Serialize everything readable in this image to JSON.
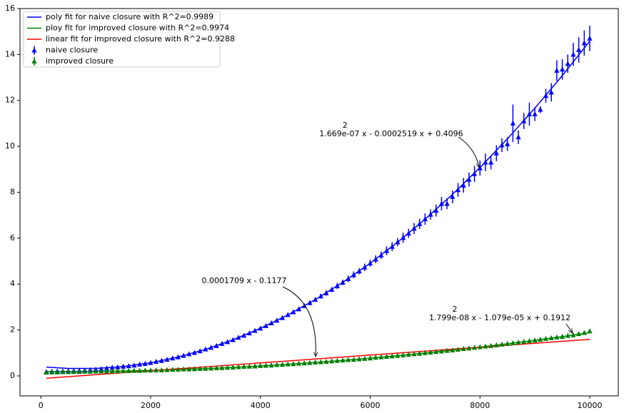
{
  "chart_data": {
    "type": "scatter",
    "xlim": [
      -380,
      10520
    ],
    "ylim": [
      -0.87,
      16
    ],
    "xticks": [
      0,
      2000,
      4000,
      6000,
      8000,
      10000
    ],
    "yticks": [
      0,
      2,
      4,
      6,
      8,
      10,
      12,
      14,
      16
    ],
    "grid": false,
    "legend": "upper left",
    "series": [
      {
        "name": "poly fit for naive closure with R^2=0.9989",
        "style": "line",
        "color": "#0000ff",
        "x": [
          100,
          500,
          1000,
          1500,
          2000,
          2500,
          3000,
          3500,
          4000,
          4500,
          5000,
          5500,
          6000,
          6500,
          7000,
          7500,
          8000,
          8500,
          9000,
          9500,
          10000
        ],
        "values": [
          0.386,
          0.325,
          0.325,
          0.407,
          0.573,
          0.823,
          1.156,
          1.573,
          2.072,
          2.656,
          3.323,
          4.074,
          4.907,
          5.825,
          6.825,
          7.909,
          9.077,
          10.328,
          11.662,
          13.08,
          14.58
        ]
      },
      {
        "name": "ploy fit for improved closure with R^2=0.9974",
        "style": "line",
        "color": "#008000",
        "x": [
          100,
          500,
          1000,
          1500,
          2000,
          2500,
          3000,
          3500,
          4000,
          4500,
          5000,
          5500,
          6000,
          6500,
          7000,
          7500,
          8000,
          8500,
          9000,
          9500,
          10000
        ],
        "values": [
          0.19,
          0.193,
          0.198,
          0.215,
          0.242,
          0.277,
          0.32,
          0.374,
          0.436,
          0.507,
          0.587,
          0.676,
          0.774,
          0.881,
          0.998,
          1.123,
          1.256,
          1.4,
          1.552,
          1.713,
          1.883
        ]
      },
      {
        "name": "linear fit for improved closure with R^2=0.9288",
        "style": "line",
        "color": "#ff0000",
        "x": [
          100,
          10000
        ],
        "values": [
          -0.1006,
          1.5913
        ]
      },
      {
        "name": "naive closure",
        "style": "marker",
        "color": "#0000ff",
        "x": [
          100,
          200,
          300,
          400,
          500,
          600,
          700,
          800,
          900,
          1000,
          1100,
          1200,
          1300,
          1400,
          1500,
          1600,
          1700,
          1800,
          1900,
          2000,
          2100,
          2200,
          2300,
          2400,
          2500,
          2600,
          2700,
          2800,
          2900,
          3000,
          3100,
          3200,
          3300,
          3400,
          3500,
          3600,
          3700,
          3800,
          3900,
          4000,
          4100,
          4200,
          4300,
          4400,
          4500,
          4600,
          4700,
          4800,
          4900,
          5000,
          5100,
          5200,
          5300,
          5400,
          5500,
          5600,
          5700,
          5800,
          5900,
          6000,
          6100,
          6200,
          6300,
          6400,
          6500,
          6600,
          6700,
          6800,
          6900,
          7000,
          7100,
          7200,
          7300,
          7400,
          7500,
          7600,
          7700,
          7800,
          7900,
          8000,
          8100,
          8200,
          8300,
          8400,
          8500,
          8600,
          8700,
          8800,
          8900,
          9000,
          9100,
          9200,
          9300,
          9400,
          9500,
          9600,
          9700,
          9800,
          9900,
          10000
        ],
        "values": [
          0.18,
          0.19,
          0.2,
          0.2,
          0.21,
          0.22,
          0.23,
          0.24,
          0.26,
          0.28,
          0.3,
          0.33,
          0.36,
          0.38,
          0.41,
          0.43,
          0.46,
          0.5,
          0.53,
          0.57,
          0.62,
          0.66,
          0.71,
          0.77,
          0.82,
          0.88,
          0.95,
          1.01,
          1.08,
          1.16,
          1.23,
          1.31,
          1.4,
          1.48,
          1.57,
          1.67,
          1.76,
          1.86,
          1.97,
          2.07,
          2.18,
          2.3,
          2.41,
          2.53,
          2.66,
          2.78,
          2.91,
          3.05,
          3.18,
          3.32,
          3.47,
          3.61,
          3.76,
          3.92,
          4.07,
          4.23,
          4.4,
          4.56,
          4.73,
          4.91,
          5.08,
          5.26,
          5.45,
          5.63,
          5.83,
          6.02,
          6.21,
          6.42,
          6.62,
          6.83,
          7.03,
          7.2,
          7.5,
          7.5,
          7.8,
          8.1,
          8.3,
          8.55,
          8.8,
          9.05,
          9.3,
          9.3,
          9.7,
          10.05,
          10.1,
          11.0,
          10.4,
          11.1,
          11.4,
          11.4,
          11.6,
          12.2,
          12.35,
          13.3,
          13.35,
          13.6,
          14.0,
          14.2,
          14.5,
          14.7
        ],
        "errors": [
          0.02,
          0.02,
          0.02,
          0.02,
          0.02,
          0.02,
          0.02,
          0.02,
          0.02,
          0.02,
          0.03,
          0.03,
          0.03,
          0.03,
          0.03,
          0.03,
          0.03,
          0.03,
          0.03,
          0.03,
          0.04,
          0.04,
          0.04,
          0.04,
          0.04,
          0.04,
          0.04,
          0.04,
          0.04,
          0.04,
          0.05,
          0.05,
          0.05,
          0.05,
          0.05,
          0.05,
          0.05,
          0.05,
          0.05,
          0.05,
          0.06,
          0.07,
          0.06,
          0.08,
          0.07,
          0.08,
          0.09,
          0.08,
          0.1,
          0.09,
          0.1,
          0.12,
          0.11,
          0.13,
          0.12,
          0.14,
          0.15,
          0.13,
          0.16,
          0.15,
          0.17,
          0.16,
          0.19,
          0.2,
          0.18,
          0.22,
          0.2,
          0.24,
          0.22,
          0.25,
          0.22,
          0.26,
          0.3,
          0.24,
          0.28,
          0.3,
          0.32,
          0.3,
          0.35,
          0.33,
          0.38,
          0.3,
          0.35,
          0.3,
          0.3,
          0.82,
          0.3,
          0.35,
          0.5,
          0.3,
          0.15,
          0.3,
          0.4,
          0.45,
          0.45,
          0.4,
          0.5,
          0.55,
          0.55,
          0.55
        ]
      },
      {
        "name": "improved closure",
        "style": "marker",
        "color": "#008000",
        "x": [
          100,
          200,
          300,
          400,
          500,
          600,
          700,
          800,
          900,
          1000,
          1100,
          1200,
          1300,
          1400,
          1500,
          1600,
          1700,
          1800,
          1900,
          2000,
          2100,
          2200,
          2300,
          2400,
          2500,
          2600,
          2700,
          2800,
          2900,
          3000,
          3100,
          3200,
          3300,
          3400,
          3500,
          3600,
          3700,
          3800,
          3900,
          4000,
          4100,
          4200,
          4300,
          4400,
          4500,
          4600,
          4700,
          4800,
          4900,
          5000,
          5100,
          5200,
          5300,
          5400,
          5500,
          5600,
          5700,
          5800,
          5900,
          6000,
          6100,
          6200,
          6300,
          6400,
          6500,
          6600,
          6700,
          6800,
          6900,
          7000,
          7100,
          7200,
          7300,
          7400,
          7500,
          7600,
          7700,
          7800,
          7900,
          8000,
          8100,
          8200,
          8300,
          8400,
          8500,
          8600,
          8700,
          8800,
          8900,
          9000,
          9100,
          9200,
          9300,
          9400,
          9500,
          9600,
          9700,
          9800,
          9900,
          10000
        ],
        "values": [
          0.15,
          0.16,
          0.16,
          0.17,
          0.17,
          0.18,
          0.18,
          0.19,
          0.19,
          0.2,
          0.2,
          0.2,
          0.21,
          0.21,
          0.22,
          0.22,
          0.23,
          0.23,
          0.24,
          0.24,
          0.25,
          0.25,
          0.26,
          0.27,
          0.28,
          0.29,
          0.29,
          0.3,
          0.31,
          0.32,
          0.33,
          0.34,
          0.35,
          0.36,
          0.37,
          0.39,
          0.4,
          0.41,
          0.42,
          0.44,
          0.45,
          0.46,
          0.48,
          0.49,
          0.51,
          0.52,
          0.54,
          0.55,
          0.57,
          0.59,
          0.6,
          0.62,
          0.64,
          0.66,
          0.68,
          0.7,
          0.71,
          0.73,
          0.75,
          0.77,
          0.8,
          0.82,
          0.84,
          0.86,
          0.88,
          0.9,
          0.93,
          0.95,
          0.97,
          1.0,
          1.02,
          1.05,
          1.07,
          1.1,
          1.12,
          1.15,
          1.18,
          1.2,
          1.23,
          1.26,
          1.29,
          1.31,
          1.34,
          1.37,
          1.4,
          1.43,
          1.46,
          1.49,
          1.52,
          1.55,
          1.58,
          1.62,
          1.65,
          1.68,
          1.71,
          1.75,
          1.78,
          1.83,
          1.88,
          1.95
        ]
      }
    ],
    "annotations": [
      {
        "superscript": "2",
        "text": "1.669e-07 x - 0.0002519 x + 0.4096"
      },
      {
        "text": "0.0001709 x - 0.1177"
      },
      {
        "superscript": "2",
        "text": "1.799e-08 x - 1.079e-05 x + 0.1912"
      }
    ]
  }
}
